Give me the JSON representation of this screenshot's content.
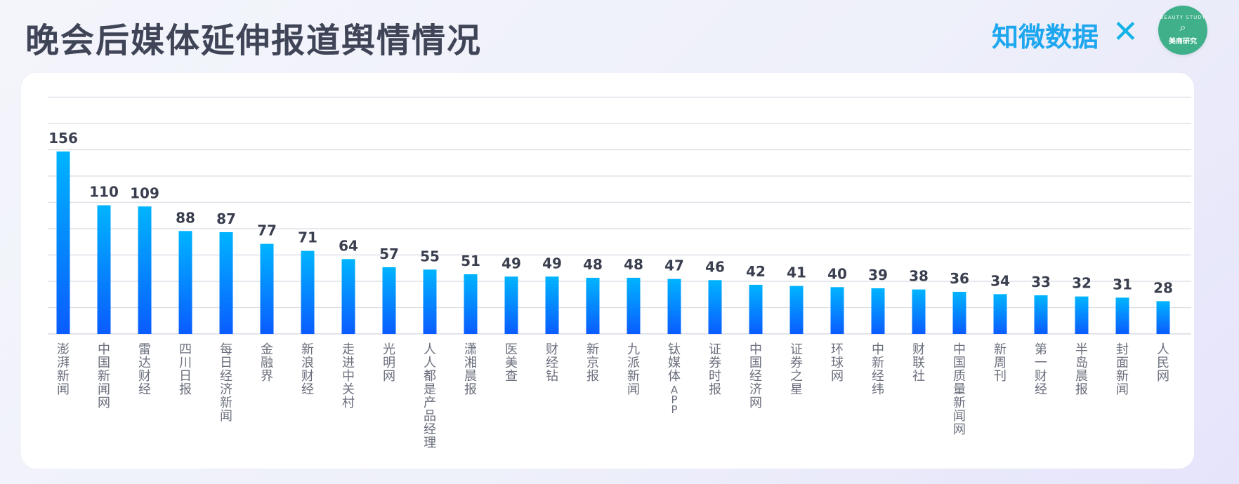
{
  "header": {
    "title": "晚会后媒体延伸报道舆情情况",
    "brand": "知微数据",
    "times_symbol": "✕",
    "badge_arc_text": "BEAUTY STUDY",
    "badge_name": "美商研究"
  },
  "colors": {
    "bar_top": "#00b4ff",
    "bar_bottom": "#0a5cff",
    "grid": "#d9dce4",
    "label": "#3a3f4f",
    "tick": "#6b6f7d",
    "brand": "#1ea7ef",
    "badge": "#3fb08a"
  },
  "chart_data": {
    "type": "bar",
    "categories": [
      "澎湃新闻",
      "中国新闻网",
      "雷达财经",
      "四川日报",
      "每日经济新闻",
      "金融界",
      "新浪财经",
      "走进中关村",
      "光明网",
      "人人都是产品经理",
      "潇湘晨报",
      "医美查",
      "财经钻",
      "新京报",
      "九派新闻",
      "钛媒体APP",
      "证券时报",
      "中国经济网",
      "证券之星",
      "环球网",
      "中新经纬",
      "财联社",
      "中国质量新闻网",
      "新周刊",
      "第一财经",
      "半岛晨报",
      "封面新闻",
      "人民网"
    ],
    "values": [
      156,
      110,
      109,
      88,
      87,
      77,
      71,
      64,
      57,
      55,
      51,
      49,
      49,
      48,
      48,
      47,
      46,
      42,
      41,
      40,
      39,
      38,
      36,
      34,
      33,
      32,
      31,
      28
    ],
    "ylim": [
      0,
      180
    ],
    "grid": true,
    "legend": "none",
    "title": "",
    "xlabel": "",
    "ylabel": ""
  }
}
